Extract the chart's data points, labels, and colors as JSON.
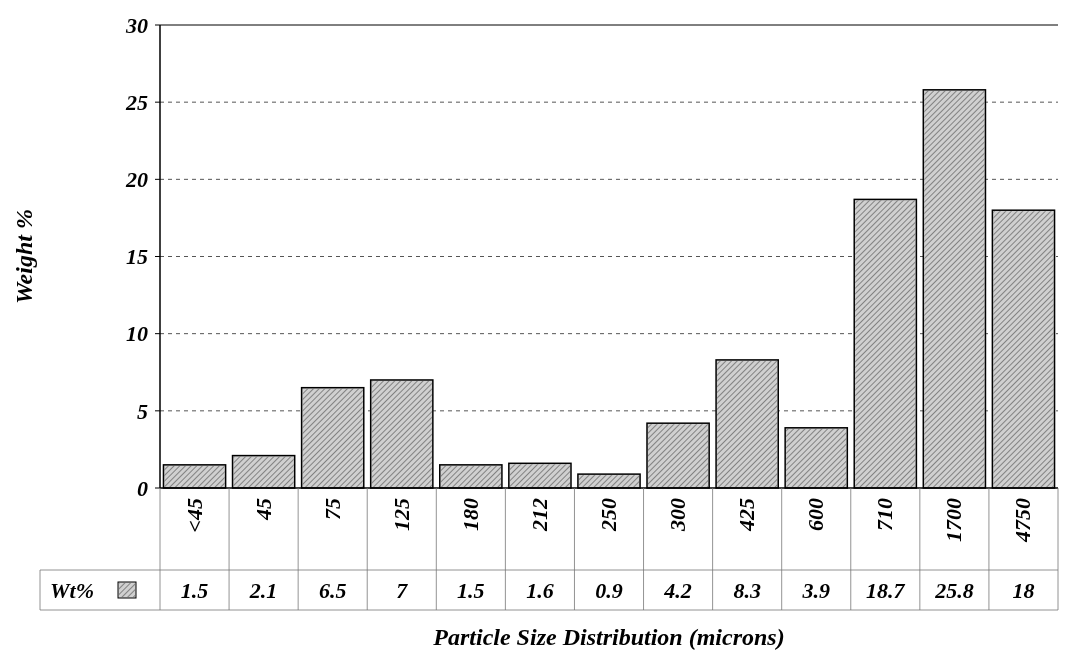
{
  "chart_data": {
    "type": "bar",
    "xlabel": "Particle Size Distribution (microns)",
    "ylabel": "Weight %",
    "categories": [
      "<45",
      "45",
      "75",
      "125",
      "180",
      "212",
      "250",
      "300",
      "425",
      "600",
      "710",
      "1700",
      "4750"
    ],
    "series": [
      {
        "name": "Wt%",
        "color": "#d0d0d0",
        "values": [
          1.5,
          2.1,
          6.5,
          7,
          1.5,
          1.6,
          0.9,
          4.2,
          8.3,
          3.9,
          18.7,
          25.8,
          18
        ]
      }
    ],
    "ylim": [
      0,
      30
    ],
    "yticks": [
      0,
      5,
      10,
      15,
      20,
      25,
      30
    ],
    "grid": "y",
    "data_labels": true,
    "legend": "bottom left"
  }
}
